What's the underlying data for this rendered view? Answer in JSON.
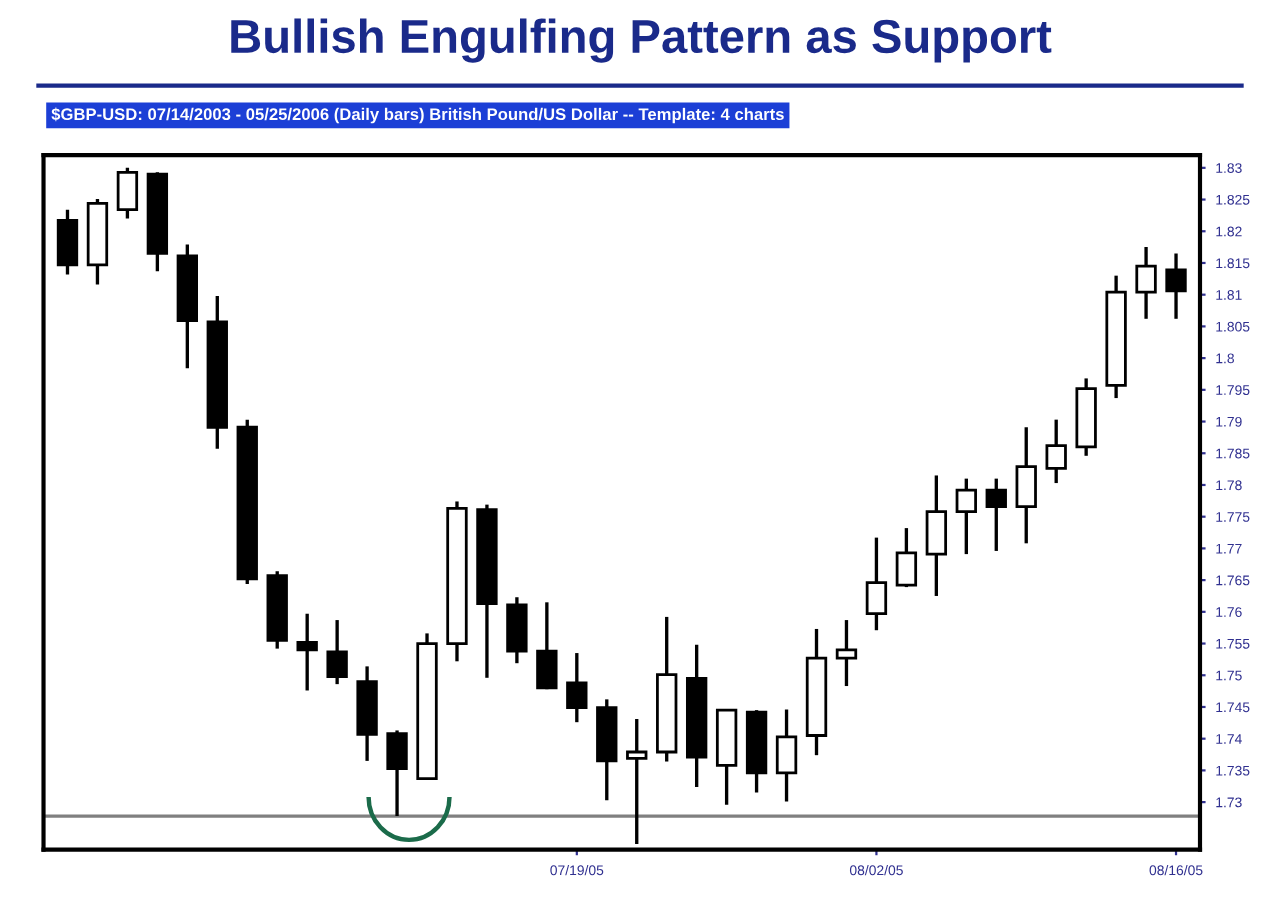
{
  "chart_data": {
    "type": "candlestick",
    "title": "Bullish Engulfing Pattern as Support",
    "subtitle": "$GBP-USD: 07/14/2003 - 05/25/2006 (Daily bars) British Pound/US Dollar -- Template: 4 charts",
    "categories": [
      null,
      null,
      null,
      null,
      null,
      null,
      null,
      null,
      null,
      null,
      null,
      null,
      null,
      null,
      null,
      null,
      null,
      "07/19/05",
      null,
      null,
      null,
      null,
      null,
      null,
      null,
      null,
      null,
      "08/02/05",
      null,
      null,
      null,
      null,
      null,
      null,
      null,
      null,
      null,
      "08/16/05"
    ],
    "ohlc": [
      [
        1.8217,
        1.8234,
        1.8132,
        1.8147
      ],
      [
        1.8147,
        1.8251,
        1.8116,
        1.8244
      ],
      [
        1.8234,
        1.83,
        1.822,
        1.8293
      ],
      [
        1.829,
        1.8293,
        1.8137,
        1.8165
      ],
      [
        1.8161,
        1.8179,
        1.7984,
        1.8059
      ],
      [
        1.8057,
        1.8098,
        1.7857,
        1.7891
      ],
      [
        1.7891,
        1.7903,
        1.7644,
        1.7652
      ],
      [
        1.7657,
        1.7664,
        1.7542,
        1.7555
      ],
      [
        1.7552,
        1.7597,
        1.7476,
        1.754
      ],
      [
        1.7537,
        1.7587,
        1.7486,
        1.7498
      ],
      [
        1.749,
        1.7514,
        1.7365,
        1.7407
      ],
      [
        1.7408,
        1.7413,
        1.7278,
        1.7353
      ],
      [
        1.7337,
        1.7566,
        1.7337,
        1.755
      ],
      [
        1.755,
        1.7774,
        1.7522,
        1.7763
      ],
      [
        1.7761,
        1.7769,
        1.7496,
        1.7613
      ],
      [
        1.7611,
        1.7623,
        1.7519,
        1.7538
      ],
      [
        1.7538,
        1.7615,
        1.7478,
        1.748
      ],
      [
        1.7488,
        1.7535,
        1.7426,
        1.7449
      ],
      [
        1.7449,
        1.7462,
        1.7303,
        1.7365
      ],
      [
        1.7369,
        1.7431,
        1.7234,
        1.7379
      ],
      [
        1.7379,
        1.7592,
        1.7364,
        1.7501
      ],
      [
        1.7495,
        1.7548,
        1.7324,
        1.7371
      ],
      [
        1.7358,
        1.7446,
        1.7296,
        1.7445
      ],
      [
        1.7442,
        1.7445,
        1.7315,
        1.7346
      ],
      [
        1.7346,
        1.7446,
        1.7301,
        1.7403
      ],
      [
        1.7405,
        1.7573,
        1.7374,
        1.7527
      ],
      [
        1.7527,
        1.7587,
        1.7483,
        1.754
      ],
      [
        1.7597,
        1.7717,
        1.7571,
        1.7646
      ],
      [
        1.7642,
        1.7732,
        1.7639,
        1.7693
      ],
      [
        1.7691,
        1.7815,
        1.7625,
        1.7758
      ],
      [
        1.7758,
        1.781,
        1.7691,
        1.7792
      ],
      [
        1.7792,
        1.781,
        1.7696,
        1.7766
      ],
      [
        1.7766,
        1.7891,
        1.7708,
        1.7829
      ],
      [
        1.7826,
        1.7903,
        1.7803,
        1.7862
      ],
      [
        1.786,
        1.7968,
        1.7846,
        1.7952
      ],
      [
        1.7957,
        1.813,
        1.7937,
        1.8104
      ],
      [
        1.8104,
        1.8175,
        1.8062,
        1.8145
      ],
      [
        1.8139,
        1.8165,
        1.8062,
        1.8106
      ]
    ],
    "colors": [
      "#000000",
      "#ffffff",
      "#ffffff",
      "#000000",
      "#000000",
      "#000000",
      "#000000",
      "#000000",
      "#000000",
      "#000000",
      "#000000",
      "#000000",
      "#ffffff",
      "#ffffff",
      "#000000",
      "#000000",
      "#000000",
      "#000000",
      "#000000",
      "#ffffff",
      "#ffffff",
      "#000000",
      "#ffffff",
      "#000000",
      "#ffffff",
      "#ffffff",
      "#ffffff",
      "#ffffff",
      "#ffffff",
      "#ffffff",
      "#ffffff",
      "#000000",
      "#ffffff",
      "#ffffff",
      "#ffffff",
      "#ffffff",
      "#ffffff",
      "#000000"
    ],
    "ylim": [
      1.7225,
      1.832
    ],
    "yticks": [
      1.73,
      1.735,
      1.74,
      1.745,
      1.75,
      1.755,
      1.76,
      1.765,
      1.77,
      1.775,
      1.78,
      1.785,
      1.79,
      1.795,
      1.8,
      1.805,
      1.81,
      1.815,
      1.82,
      1.825,
      1.83
    ],
    "ref_lines": [
      {
        "axis": "y",
        "value": 1.7278,
        "color": "#808080"
      }
    ],
    "grid": false,
    "legend": false
  }
}
